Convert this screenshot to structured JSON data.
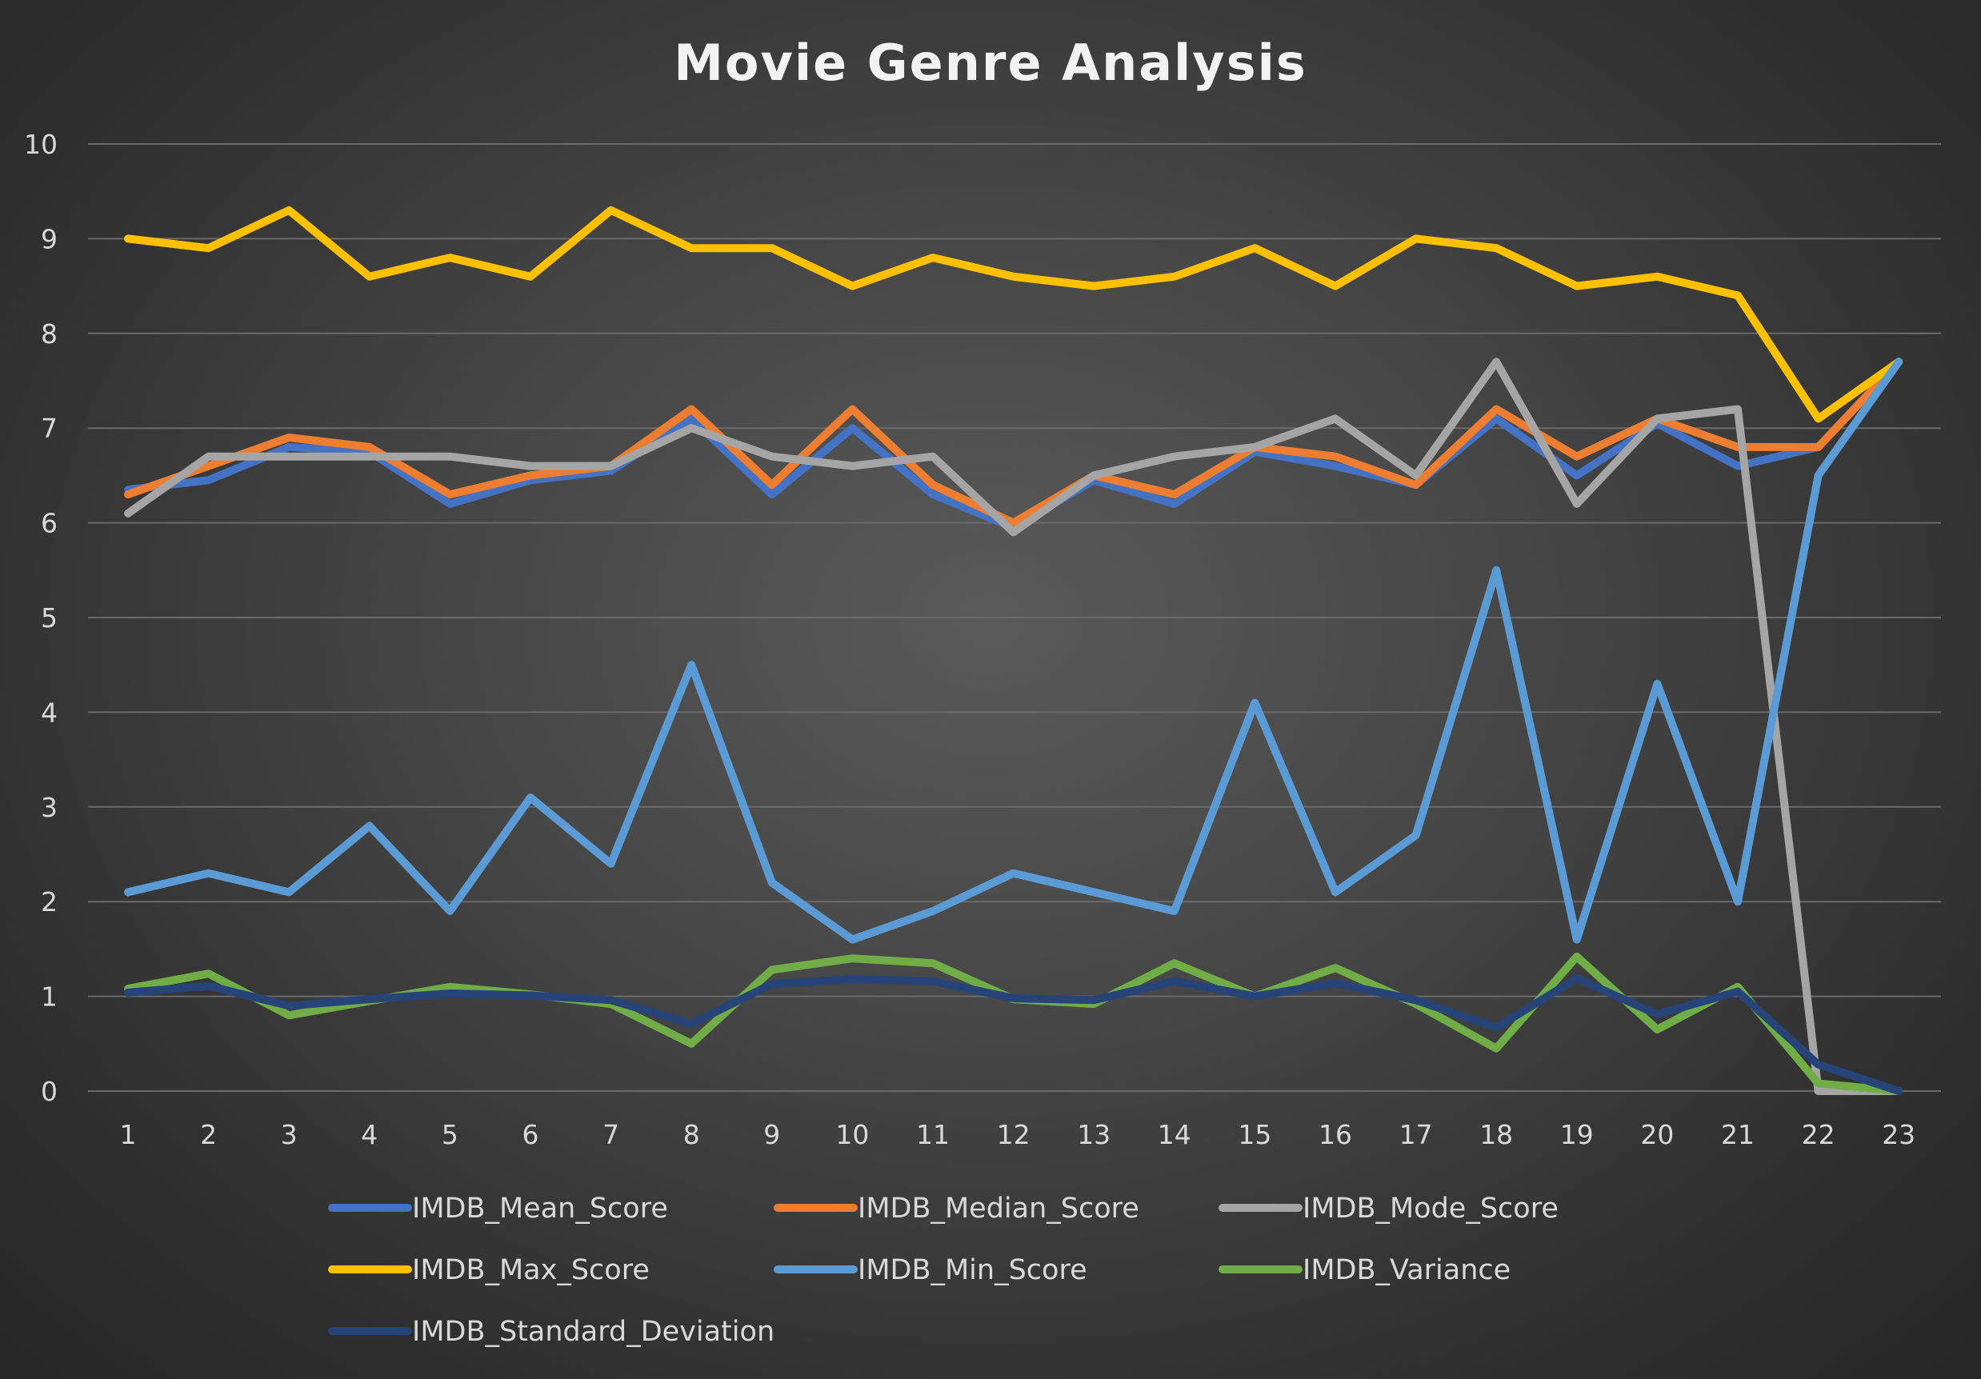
{
  "chart_data": {
    "type": "line",
    "title": "Movie Genre Analysis",
    "xlabel": "",
    "ylabel": "",
    "ylim": [
      0,
      10
    ],
    "yticks": [
      "0",
      "1",
      "2",
      "3",
      "4",
      "5",
      "6",
      "7",
      "8",
      "9",
      "10"
    ],
    "grid": true,
    "legend_position": "bottom",
    "categories": [
      "1",
      "2",
      "3",
      "4",
      "5",
      "6",
      "7",
      "8",
      "9",
      "10",
      "11",
      "12",
      "13",
      "14",
      "15",
      "16",
      "17",
      "18",
      "19",
      "20",
      "21",
      "22",
      "23"
    ],
    "series": [
      {
        "name": "IMDB_Mean_Score",
        "color": "#4472c4",
        "values": [
          6.35,
          6.45,
          6.8,
          6.75,
          6.2,
          6.45,
          6.55,
          7.1,
          6.3,
          7.0,
          6.3,
          5.95,
          6.45,
          6.2,
          6.75,
          6.6,
          6.4,
          7.1,
          6.5,
          7.05,
          6.6,
          6.8,
          7.7
        ]
      },
      {
        "name": "IMDB_Median_Score",
        "color": "#ed7d31",
        "values": [
          6.3,
          6.6,
          6.9,
          6.8,
          6.3,
          6.5,
          6.6,
          7.2,
          6.4,
          7.2,
          6.4,
          6.0,
          6.5,
          6.3,
          6.8,
          6.7,
          6.4,
          7.2,
          6.7,
          7.1,
          6.8,
          6.8,
          7.7
        ]
      },
      {
        "name": "IMDB_Mode_Score",
        "color": "#a5a5a5",
        "values": [
          6.1,
          6.7,
          6.7,
          6.7,
          6.7,
          6.6,
          6.6,
          7.0,
          6.7,
          6.6,
          6.7,
          5.9,
          6.5,
          6.7,
          6.8,
          7.1,
          6.5,
          7.7,
          6.2,
          7.1,
          7.2,
          0.0,
          0.0
        ]
      },
      {
        "name": "IMDB_Max_Score",
        "color": "#ffc000",
        "values": [
          9.0,
          8.9,
          9.3,
          8.6,
          8.8,
          8.6,
          9.3,
          8.9,
          8.9,
          8.5,
          8.8,
          8.6,
          8.5,
          8.6,
          8.9,
          8.5,
          9.0,
          8.9,
          8.5,
          8.6,
          8.4,
          7.1,
          7.7
        ]
      },
      {
        "name": "IMDB_Min_Score",
        "color": "#5b9bd5",
        "values": [
          2.1,
          2.3,
          2.1,
          2.8,
          1.9,
          3.1,
          2.4,
          4.5,
          2.2,
          1.6,
          1.9,
          2.3,
          2.1,
          1.9,
          4.1,
          2.1,
          2.7,
          5.5,
          1.6,
          4.3,
          2.0,
          6.5,
          7.7
        ]
      },
      {
        "name": "IMDB_Variance",
        "color": "#70ad47",
        "values": [
          1.08,
          1.24,
          0.8,
          0.95,
          1.1,
          1.02,
          0.92,
          0.5,
          1.28,
          1.4,
          1.35,
          0.97,
          0.92,
          1.35,
          1.0,
          1.3,
          0.92,
          0.45,
          1.42,
          0.65,
          1.1,
          0.08,
          0.0
        ]
      },
      {
        "name": "IMDB_Standard_Deviation",
        "color": "#264478",
        "values": [
          1.04,
          1.11,
          0.9,
          0.97,
          1.03,
          1.01,
          0.96,
          0.71,
          1.13,
          1.18,
          1.16,
          0.98,
          0.96,
          1.16,
          1.0,
          1.14,
          0.96,
          0.67,
          1.19,
          0.81,
          1.05,
          0.28,
          0.0
        ]
      }
    ]
  }
}
